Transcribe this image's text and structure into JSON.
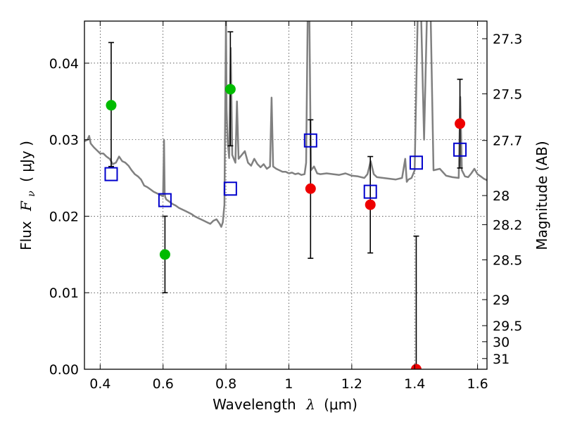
{
  "chart_data": {
    "type": "scatter",
    "xlabel": "Wavelength",
    "xlabel_symbol": "λ",
    "xlabel_unit": "(μm)",
    "ylabel": "Flux",
    "ylabel_symbol": "F",
    "ylabel_subscript": "ν",
    "ylabel_unit": "( μJy )",
    "y2label": "Magnitude (AB)",
    "xlim": [
      0.35,
      1.63
    ],
    "ylim": [
      0.0,
      0.0455
    ],
    "grid": true,
    "x_ticks": [
      0.4,
      0.6,
      0.8,
      1.0,
      1.2,
      1.4,
      1.6
    ],
    "x_tick_labels": [
      "0.4",
      "0.6",
      "0.8",
      "1",
      "1.2",
      "1.4",
      "1.6"
    ],
    "y_ticks": [
      0.0,
      0.01,
      0.02,
      0.03,
      0.04
    ],
    "y_tick_labels": [
      "0.00",
      "0.01",
      "0.02",
      "0.03",
      "0.04"
    ],
    "y2_ticks": [
      {
        "label": "27.3",
        "flux": 0.0432
      },
      {
        "label": "27.5",
        "flux": 0.036
      },
      {
        "label": "27.7",
        "flux": 0.0299
      },
      {
        "label": "28",
        "flux": 0.0227
      },
      {
        "label": "28.2",
        "flux": 0.0189
      },
      {
        "label": "28.5",
        "flux": 0.0143
      },
      {
        "label": "29",
        "flux": 0.0091
      },
      {
        "label": "29.5",
        "flux": 0.0057
      },
      {
        "label": "30",
        "flux": 0.0036
      },
      {
        "label": "31",
        "flux": 0.0014
      }
    ],
    "series": [
      {
        "marker": "circle",
        "color": "#00bb00",
        "points": [
          {
            "x": 0.435,
            "y": 0.0345,
            "ylo": 0.0265,
            "yhi": 0.0427
          },
          {
            "x": 0.606,
            "y": 0.015,
            "ylo": 0.01,
            "yhi": 0.02
          },
          {
            "x": 0.814,
            "y": 0.0366,
            "ylo": 0.0292,
            "yhi": 0.0441
          }
        ]
      },
      {
        "marker": "circle",
        "color": "#ee0000",
        "points": [
          {
            "x": 1.069,
            "y": 0.0236,
            "ylo": 0.0145,
            "yhi": 0.0326
          },
          {
            "x": 1.259,
            "y": 0.0215,
            "ylo": 0.0152,
            "yhi": 0.0278
          },
          {
            "x": 1.405,
            "y": 0.0,
            "ylo": 0.0,
            "yhi": 0.0174
          },
          {
            "x": 1.544,
            "y": 0.0321,
            "ylo": 0.0263,
            "yhi": 0.0379
          }
        ]
      },
      {
        "marker": "open-square",
        "color": "#0000cc",
        "points": [
          {
            "x": 0.435,
            "y": 0.0255
          },
          {
            "x": 0.606,
            "y": 0.0221
          },
          {
            "x": 0.814,
            "y": 0.0236
          },
          {
            "x": 1.069,
            "y": 0.0299
          },
          {
            "x": 1.259,
            "y": 0.0232
          },
          {
            "x": 1.405,
            "y": 0.027
          },
          {
            "x": 1.544,
            "y": 0.0287
          }
        ]
      },
      {
        "type": "line",
        "color": "#808080",
        "x": [
          0.35,
          0.36,
          0.365,
          0.37,
          0.38,
          0.39,
          0.4,
          0.41,
          0.42,
          0.43,
          0.44,
          0.45,
          0.46,
          0.47,
          0.48,
          0.49,
          0.5,
          0.51,
          0.52,
          0.53,
          0.54,
          0.55,
          0.56,
          0.57,
          0.58,
          0.59,
          0.6,
          0.603,
          0.605,
          0.607,
          0.61,
          0.62,
          0.63,
          0.64,
          0.65,
          0.66,
          0.67,
          0.68,
          0.69,
          0.7,
          0.71,
          0.72,
          0.73,
          0.74,
          0.75,
          0.76,
          0.77,
          0.78,
          0.785,
          0.79,
          0.795,
          0.8,
          0.802,
          0.805,
          0.81,
          0.815,
          0.82,
          0.83,
          0.835,
          0.84,
          0.85,
          0.86,
          0.87,
          0.88,
          0.89,
          0.9,
          0.91,
          0.92,
          0.93,
          0.94,
          0.945,
          0.95,
          0.96,
          0.97,
          0.98,
          0.99,
          1.0,
          1.01,
          1.02,
          1.03,
          1.04,
          1.05,
          1.055,
          1.06,
          1.065,
          1.07,
          1.08,
          1.09,
          1.1,
          1.12,
          1.14,
          1.16,
          1.18,
          1.2,
          1.22,
          1.24,
          1.25,
          1.26,
          1.27,
          1.28,
          1.3,
          1.32,
          1.34,
          1.36,
          1.37,
          1.375,
          1.38,
          1.39,
          1.4,
          1.41,
          1.42,
          1.43,
          1.44,
          1.45,
          1.46,
          1.48,
          1.5,
          1.52,
          1.54,
          1.545,
          1.55,
          1.56,
          1.57,
          1.58,
          1.59,
          1.6,
          1.61,
          1.62,
          1.63
        ],
        "y": [
          0.0298,
          0.03,
          0.0305,
          0.0295,
          0.029,
          0.0286,
          0.0282,
          0.0282,
          0.0278,
          0.0275,
          0.0268,
          0.027,
          0.0278,
          0.0272,
          0.027,
          0.0266,
          0.026,
          0.0255,
          0.0252,
          0.0248,
          0.024,
          0.0238,
          0.0235,
          0.0232,
          0.023,
          0.0228,
          0.0226,
          0.03,
          0.023,
          0.0225,
          0.0222,
          0.0219,
          0.0216,
          0.0214,
          0.0211,
          0.0209,
          0.0207,
          0.0205,
          0.0203,
          0.02,
          0.0198,
          0.0196,
          0.0194,
          0.0192,
          0.019,
          0.0194,
          0.0196,
          0.019,
          0.0186,
          0.0192,
          0.0215,
          0.046,
          0.034,
          0.03,
          0.0276,
          0.042,
          0.028,
          0.027,
          0.035,
          0.0275,
          0.028,
          0.0285,
          0.027,
          0.0266,
          0.0275,
          0.0268,
          0.0264,
          0.0268,
          0.0262,
          0.0265,
          0.0355,
          0.0265,
          0.0262,
          0.026,
          0.0258,
          0.0258,
          0.0256,
          0.0257,
          0.0255,
          0.0256,
          0.0254,
          0.0255,
          0.027,
          0.047,
          0.047,
          0.026,
          0.0265,
          0.0256,
          0.0255,
          0.0256,
          0.0255,
          0.0254,
          0.0256,
          0.0253,
          0.0252,
          0.025,
          0.0255,
          0.0272,
          0.0255,
          0.0251,
          0.025,
          0.0249,
          0.0248,
          0.025,
          0.0275,
          0.0245,
          0.0248,
          0.025,
          0.026,
          0.047,
          0.047,
          0.03,
          0.048,
          0.048,
          0.026,
          0.0262,
          0.0253,
          0.0251,
          0.025,
          0.0356,
          0.026,
          0.0252,
          0.0251,
          0.0256,
          0.0262,
          0.0255,
          0.0252,
          0.0249,
          0.0247
        ]
      }
    ]
  }
}
